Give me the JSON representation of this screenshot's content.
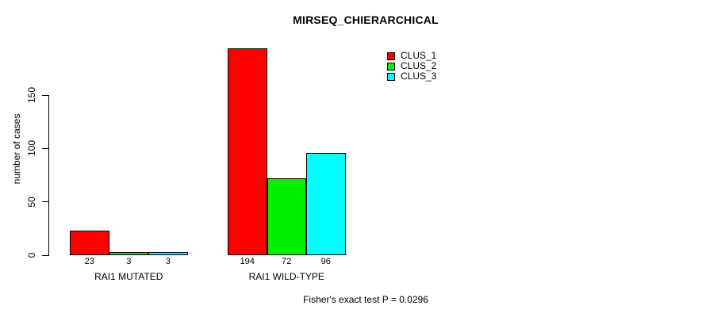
{
  "title": "MIRSEQ_CHIERARCHICAL",
  "footer": "Fisher's exact test P = 0.0296",
  "chart_data": {
    "type": "bar",
    "title": "MIRSEQ_CHIERARCHICAL",
    "xlabel": "",
    "ylabel": "number of cases",
    "categories": [
      "RAI1 MUTATED",
      "RAI1 WILD-TYPE"
    ],
    "series": [
      {
        "name": "CLUS_1",
        "color": "#ff0000",
        "values": [
          23,
          194
        ]
      },
      {
        "name": "CLUS_2",
        "color": "#00f000",
        "values": [
          3,
          72
        ]
      },
      {
        "name": "CLUS_3",
        "color": "#00ffff",
        "values": [
          3,
          96
        ]
      }
    ],
    "bar_value_labels": [
      [
        "23",
        "3",
        "3"
      ],
      [
        "194",
        "72",
        "96"
      ]
    ],
    "yticks": [
      0,
      50,
      100,
      150
    ],
    "ylim": [
      0,
      200
    ],
    "grid": false,
    "legend_position": "top-right",
    "legend_entries": [
      "CLUS_1",
      "CLUS_2",
      "CLUS_3"
    ],
    "annotation": "Fisher's exact test P = 0.0296"
  }
}
